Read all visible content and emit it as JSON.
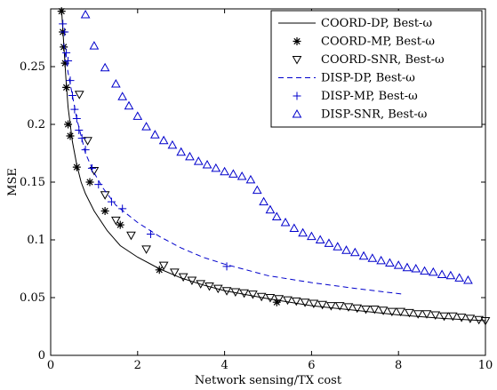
{
  "chart_data": {
    "type": "line",
    "title": "",
    "xlabel": "Network sensing/TX cost",
    "ylabel": "MSE",
    "xlim": [
      0,
      10
    ],
    "ylim": [
      0,
      0.3
    ],
    "xticks": [
      "0",
      "2",
      "4",
      "6",
      "8",
      "10"
    ],
    "yticks": [
      "0",
      "0.05",
      "0.1",
      "0.15",
      "0.2",
      "0.25"
    ],
    "grid": false,
    "legend_position": "top-right",
    "series": [
      {
        "name": "COORD-DP, Best-ω",
        "style": "solid",
        "color": "#000000",
        "marker": "none",
        "x": [
          0.25,
          0.3,
          0.35,
          0.4,
          0.5,
          0.6,
          0.7,
          0.8,
          1.0,
          1.3,
          1.6,
          2.0,
          2.5,
          3.0,
          3.5,
          4.0,
          5.0,
          6.0,
          7.0,
          8.0,
          9.0,
          10.0
        ],
        "y": [
          0.3,
          0.27,
          0.24,
          0.215,
          0.185,
          0.165,
          0.15,
          0.14,
          0.125,
          0.108,
          0.095,
          0.085,
          0.075,
          0.067,
          0.061,
          0.056,
          0.049,
          0.043,
          0.039,
          0.035,
          0.032,
          0.03
        ]
      },
      {
        "name": "COORD-MP, Best-ω",
        "style": "none",
        "color": "#000000",
        "marker": "asterisk",
        "x": [
          0.25,
          0.28,
          0.3,
          0.33,
          0.36,
          0.4,
          0.45,
          0.6,
          0.9,
          1.25,
          1.6,
          2.5,
          5.2
        ],
        "y": [
          0.298,
          0.28,
          0.267,
          0.253,
          0.232,
          0.2,
          0.19,
          0.163,
          0.15,
          0.125,
          0.113,
          0.074,
          0.046
        ]
      },
      {
        "name": "COORD-SNR, Best-ω",
        "style": "none",
        "color": "#000000",
        "marker": "triangle-down",
        "x": [
          0.66,
          0.85,
          1.0,
          1.25,
          1.5,
          1.85,
          2.2,
          2.6,
          2.85,
          3.05,
          3.25,
          3.45,
          3.65,
          3.85,
          4.05,
          4.25,
          4.45,
          4.65,
          4.85,
          5.05,
          5.25,
          5.45,
          5.65,
          5.85,
          6.05,
          6.25,
          6.45,
          6.65,
          6.85,
          7.05,
          7.25,
          7.45,
          7.65,
          7.85,
          8.05,
          8.25,
          8.45,
          8.65,
          8.85,
          9.05,
          9.25,
          9.45,
          9.65,
          9.85,
          10.0
        ],
        "y": [
          0.226,
          0.186,
          0.16,
          0.139,
          0.117,
          0.104,
          0.092,
          0.078,
          0.072,
          0.068,
          0.065,
          0.062,
          0.06,
          0.058,
          0.056,
          0.055,
          0.054,
          0.053,
          0.051,
          0.05,
          0.049,
          0.048,
          0.047,
          0.046,
          0.045,
          0.044,
          0.043,
          0.043,
          0.042,
          0.041,
          0.04,
          0.04,
          0.039,
          0.038,
          0.038,
          0.037,
          0.036,
          0.036,
          0.035,
          0.034,
          0.034,
          0.033,
          0.032,
          0.031,
          0.03
        ]
      },
      {
        "name": "DISP-DP, Best-ω",
        "style": "dashed",
        "color": "#0000cc",
        "marker": "none",
        "x": [
          0.3,
          0.4,
          0.5,
          0.6,
          0.7,
          0.8,
          1.0,
          1.2,
          1.5,
          2.0,
          2.5,
          3.0,
          3.5,
          4.0,
          5.0,
          6.0,
          7.0,
          8.1
        ],
        "y": [
          0.27,
          0.245,
          0.225,
          0.205,
          0.19,
          0.175,
          0.158,
          0.145,
          0.13,
          0.115,
          0.103,
          0.093,
          0.085,
          0.079,
          0.069,
          0.063,
          0.058,
          0.053
        ]
      },
      {
        "name": "DISP-MP, Best-ω",
        "style": "none",
        "color": "#0000cc",
        "marker": "plus",
        "x": [
          0.28,
          0.32,
          0.36,
          0.4,
          0.45,
          0.5,
          0.55,
          0.6,
          0.65,
          0.72,
          0.8,
          0.95,
          1.1,
          1.4,
          1.65,
          2.3,
          4.05
        ],
        "y": [
          0.287,
          0.28,
          0.262,
          0.255,
          0.238,
          0.225,
          0.213,
          0.205,
          0.195,
          0.188,
          0.178,
          0.162,
          0.148,
          0.133,
          0.127,
          0.105,
          0.077
        ]
      },
      {
        "name": "DISP-SNR, Best-ω",
        "style": "none",
        "color": "#0000cc",
        "marker": "triangle-up",
        "x": [
          0.8,
          1.0,
          1.25,
          1.5,
          1.65,
          1.8,
          2.0,
          2.2,
          2.4,
          2.6,
          2.8,
          3.0,
          3.2,
          3.4,
          3.6,
          3.8,
          4.0,
          4.2,
          4.4,
          4.6,
          4.75,
          4.9,
          5.05,
          5.2,
          5.4,
          5.6,
          5.8,
          6.0,
          6.2,
          6.4,
          6.6,
          6.8,
          7.0,
          7.2,
          7.4,
          7.6,
          7.8,
          8.0,
          8.2,
          8.4,
          8.6,
          8.8,
          9.0,
          9.2,
          9.4,
          9.6
        ],
        "y": [
          0.295,
          0.268,
          0.249,
          0.235,
          0.224,
          0.216,
          0.207,
          0.198,
          0.191,
          0.186,
          0.182,
          0.176,
          0.172,
          0.168,
          0.165,
          0.162,
          0.159,
          0.157,
          0.155,
          0.152,
          0.143,
          0.133,
          0.126,
          0.12,
          0.115,
          0.11,
          0.106,
          0.103,
          0.1,
          0.097,
          0.094,
          0.091,
          0.089,
          0.086,
          0.084,
          0.082,
          0.08,
          0.078,
          0.076,
          0.075,
          0.073,
          0.072,
          0.07,
          0.069,
          0.067,
          0.065
        ]
      }
    ]
  }
}
